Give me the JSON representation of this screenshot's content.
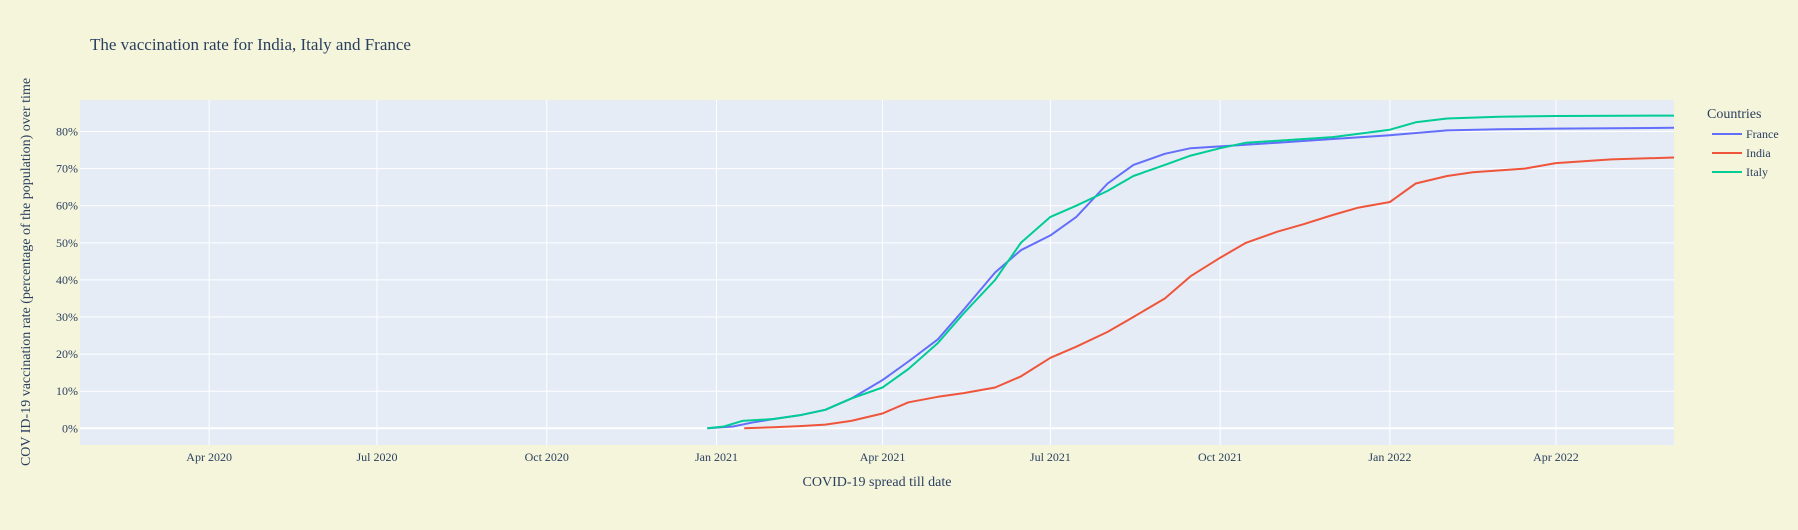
{
  "chart_data": {
    "type": "line",
    "title": "The vaccination rate for India, Italy and France",
    "xlabel": "COVID-19 spread till date",
    "ylabel": "COV ID-19 vaccination rate (percentage of the population) over time",
    "xlim": [
      "2020-01-22",
      "2022-06-04"
    ],
    "ylim": [
      -4.5,
      88.5
    ],
    "x_ticks": [
      "2020-04-01",
      "2020-07-01",
      "2020-10-01",
      "2021-01-01",
      "2021-04-01",
      "2021-07-01",
      "2021-10-01",
      "2022-01-01",
      "2022-04-01"
    ],
    "x_tick_labels": [
      "Apr 2020",
      "Jul 2020",
      "Oct 2020",
      "Jan 2021",
      "Apr 2021",
      "Jul 2021",
      "Oct 2021",
      "Jan 2022",
      "Apr 2022"
    ],
    "y_ticks": [
      0,
      10,
      20,
      30,
      40,
      50,
      60,
      70,
      80
    ],
    "y_tick_labels": [
      "0%",
      "10%",
      "20%",
      "30%",
      "40%",
      "50%",
      "60%",
      "70%",
      "80%"
    ],
    "grid": true,
    "legend": {
      "title": "Countries",
      "position": "top-right"
    },
    "series": [
      {
        "name": "France",
        "color": "#636efa",
        "points": [
          [
            "2020-12-27",
            0
          ],
          [
            "2021-01-10",
            0.5
          ],
          [
            "2021-01-20",
            1.5
          ],
          [
            "2021-02-01",
            2.5
          ],
          [
            "2021-02-15",
            3.5
          ],
          [
            "2021-03-01",
            5
          ],
          [
            "2021-03-15",
            8
          ],
          [
            "2021-04-01",
            13
          ],
          [
            "2021-04-15",
            18
          ],
          [
            "2021-05-01",
            24
          ],
          [
            "2021-05-15",
            32
          ],
          [
            "2021-06-01",
            42
          ],
          [
            "2021-06-15",
            48
          ],
          [
            "2021-07-01",
            52
          ],
          [
            "2021-07-15",
            57
          ],
          [
            "2021-08-01",
            66
          ],
          [
            "2021-08-15",
            71
          ],
          [
            "2021-09-01",
            74
          ],
          [
            "2021-09-15",
            75.5
          ],
          [
            "2021-10-01",
            76
          ],
          [
            "2021-11-01",
            77
          ],
          [
            "2021-12-01",
            78
          ],
          [
            "2022-01-01",
            79
          ],
          [
            "2022-02-01",
            80.3
          ],
          [
            "2022-03-01",
            80.6
          ],
          [
            "2022-04-01",
            80.8
          ],
          [
            "2022-06-04",
            81
          ]
        ]
      },
      {
        "name": "India",
        "color": "#ef553b",
        "points": [
          [
            "2021-01-16",
            0
          ],
          [
            "2021-02-01",
            0.3
          ],
          [
            "2021-02-15",
            0.6
          ],
          [
            "2021-03-01",
            1
          ],
          [
            "2021-03-15",
            2
          ],
          [
            "2021-04-01",
            4
          ],
          [
            "2021-04-15",
            7
          ],
          [
            "2021-05-01",
            8.5
          ],
          [
            "2021-05-15",
            9.5
          ],
          [
            "2021-06-01",
            11
          ],
          [
            "2021-06-15",
            14
          ],
          [
            "2021-07-01",
            19
          ],
          [
            "2021-07-15",
            22
          ],
          [
            "2021-08-01",
            26
          ],
          [
            "2021-08-15",
            30
          ],
          [
            "2021-09-01",
            35
          ],
          [
            "2021-09-15",
            41
          ],
          [
            "2021-10-01",
            46
          ],
          [
            "2021-10-15",
            50
          ],
          [
            "2021-11-01",
            53
          ],
          [
            "2021-11-15",
            55
          ],
          [
            "2021-12-01",
            57.5
          ],
          [
            "2021-12-15",
            59.5
          ],
          [
            "2022-01-01",
            61
          ],
          [
            "2022-01-15",
            66
          ],
          [
            "2022-02-01",
            68
          ],
          [
            "2022-02-15",
            69
          ],
          [
            "2022-03-15",
            70
          ],
          [
            "2022-04-01",
            71.5
          ],
          [
            "2022-05-01",
            72.5
          ],
          [
            "2022-06-04",
            73
          ]
        ]
      },
      {
        "name": "Italy",
        "color": "#00cc96",
        "points": [
          [
            "2020-12-27",
            0
          ],
          [
            "2021-01-05",
            0.5
          ],
          [
            "2021-01-15",
            2
          ],
          [
            "2021-02-01",
            2.5
          ],
          [
            "2021-02-15",
            3.5
          ],
          [
            "2021-03-01",
            5
          ],
          [
            "2021-03-15",
            8
          ],
          [
            "2021-04-01",
            11
          ],
          [
            "2021-04-15",
            16
          ],
          [
            "2021-05-01",
            23
          ],
          [
            "2021-05-15",
            31
          ],
          [
            "2021-06-01",
            40
          ],
          [
            "2021-06-15",
            50
          ],
          [
            "2021-07-01",
            57
          ],
          [
            "2021-07-15",
            60
          ],
          [
            "2021-08-01",
            64
          ],
          [
            "2021-08-15",
            68
          ],
          [
            "2021-09-01",
            71
          ],
          [
            "2021-09-15",
            73.5
          ],
          [
            "2021-10-01",
            75.5
          ],
          [
            "2021-10-15",
            77
          ],
          [
            "2021-11-01",
            77.5
          ],
          [
            "2021-12-01",
            78.5
          ],
          [
            "2022-01-01",
            80.5
          ],
          [
            "2022-01-15",
            82.5
          ],
          [
            "2022-02-01",
            83.5
          ],
          [
            "2022-03-01",
            84
          ],
          [
            "2022-04-01",
            84.2
          ],
          [
            "2022-06-04",
            84.3
          ]
        ]
      }
    ]
  }
}
